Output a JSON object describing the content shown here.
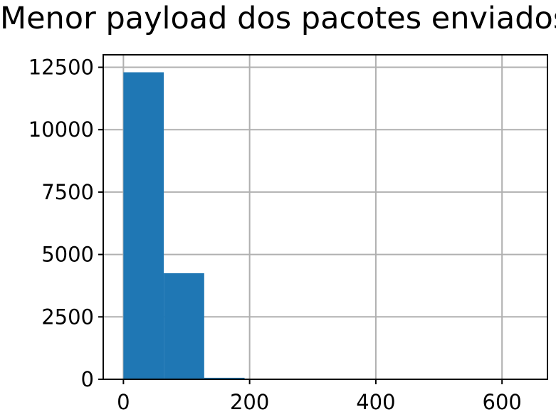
{
  "chart_data": {
    "type": "bar",
    "title": "Menor payload dos pacotes enviados",
    "xlabel": "",
    "ylabel": "",
    "bin_edges": [
      0,
      64,
      128,
      192,
      256,
      320,
      384,
      448,
      512,
      576,
      640
    ],
    "values": [
      12300,
      4250,
      60,
      10,
      5,
      3,
      2,
      1,
      1,
      1
    ],
    "xlim": [
      -32,
      672
    ],
    "ylim": [
      0,
      13000
    ],
    "xticks": [
      0,
      200,
      400,
      600
    ],
    "yticks": [
      0,
      2500,
      5000,
      7500,
      10000,
      12500
    ],
    "grid": true,
    "bar_color": "#1f77b4"
  }
}
